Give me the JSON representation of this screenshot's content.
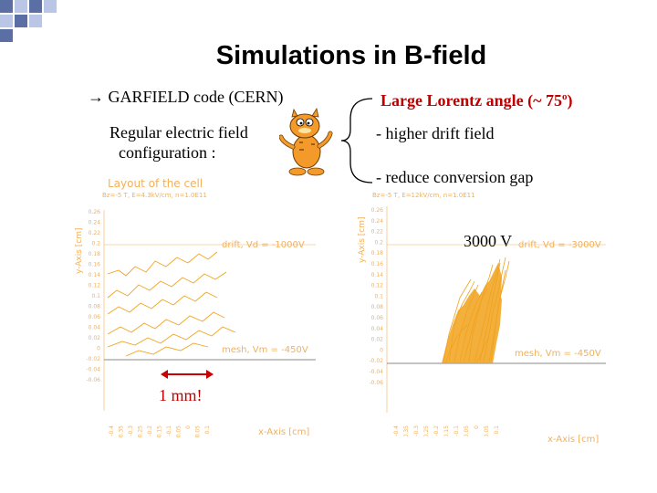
{
  "title": "Simulations in B-field",
  "left": {
    "bullet": "→ GARFIELD code (CERN)",
    "line1": "Regular electric field",
    "line2": "configuration :",
    "scale_label": "1 mm!"
  },
  "right": {
    "heading": "Large Lorentz angle (~ 75",
    "heading_sup": "o",
    "heading_end": ")",
    "item1": "- higher drift field",
    "item2": "- reduce conversion gap",
    "voltage": "3000 V"
  },
  "plot_left": {
    "title": "Layout of the cell",
    "subtitle": "Bz=-5 T, E=4.3kV/cm, n=1.0E11",
    "drift_label": "drift, Vd = -1000V",
    "mesh_label": "mesh, Vm = -450V",
    "ylabel": "y-Axis [cm]",
    "xlabel": "x-Axis [cm]",
    "yticks": [
      "0.26",
      "0.24",
      "0.22",
      "0.2",
      "0.18",
      "0.16",
      "0.14",
      "0.12",
      "0.1",
      "0.08",
      "0.06",
      "0.04",
      "0.02",
      "0",
      "-0.02",
      "-0.04",
      "-0.06"
    ],
    "xticks": [
      "-0.4",
      "-0.35",
      "-0.3",
      "-0.25",
      "-0.2",
      "-0.15",
      "-0.1",
      "-0.05",
      "0",
      "0.05",
      "0.1"
    ]
  },
  "plot_right": {
    "subtitle": "Bz=-5 T, E=12kV/cm, n=1.0E11",
    "drift_label": "drift, Vd = -3000V",
    "mesh_label": "mesh, Vm = -450V",
    "ylabel": "y-Axis [cm]",
    "xlabel": "x-Axis [cm]",
    "yticks": [
      "0.26",
      "0.24",
      "0.22",
      "0.2",
      "0.18",
      "0.16",
      "0.14",
      "0.12",
      "0.1",
      "0.08",
      "0.06",
      "0.04",
      "0.02",
      "0",
      "-0.02",
      "-0.04",
      "-0.06"
    ],
    "xticks": [
      "-0.4",
      "-0.35",
      "-0.3",
      "-0.25",
      "-0.2",
      "-0.15",
      "-0.1",
      "-0.05",
      "0",
      "0.05",
      "0.1"
    ]
  },
  "colors": {
    "trace": "#f2a21b",
    "axis_text": "#f3b05a",
    "arrow": "#cc0000",
    "deco_dark": "#5a6fa3",
    "deco_light": "#b9c6e6"
  },
  "icons": {
    "mascot": "garfield-cartoon-icon",
    "brace": "curly-brace-icon"
  }
}
